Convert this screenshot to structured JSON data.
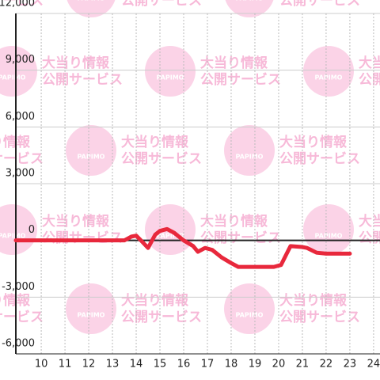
{
  "chart_data": {
    "type": "line",
    "x": [
      8.93,
      13.5,
      13.8,
      14.0,
      14.2,
      14.5,
      14.8,
      15.0,
      15.3,
      15.6,
      16.0,
      16.4,
      16.6,
      16.9,
      17.2,
      17.6,
      18.0,
      18.3,
      19.0,
      19.8,
      20.1,
      20.3,
      20.5,
      21.0,
      21.2,
      21.6,
      22.0,
      23.0
    ],
    "series": [
      {
        "color": "#e8283c",
        "values": [
          0,
          0,
          200,
          250,
          0,
          -400,
          300,
          500,
          600,
          400,
          0,
          -300,
          -600,
          -400,
          -500,
          -900,
          -1200,
          -1400,
          -1400,
          -1400,
          -1300,
          -800,
          -300,
          -350,
          -400,
          -650,
          -700,
          -700
        ]
      }
    ],
    "xlim": [
      8.93,
      24.27
    ],
    "ylim": [
      -6000,
      12000
    ],
    "xticks": [
      10,
      11,
      12,
      13,
      14,
      15,
      16,
      17,
      18,
      19,
      20,
      21,
      22,
      23,
      24
    ],
    "yticks": [
      {
        "value": -6000,
        "label": "-6,000"
      },
      {
        "value": -3000,
        "label": "-3,000"
      },
      0,
      {
        "value": 3000,
        "label": "3,000"
      },
      {
        "value": 6000,
        "label": "6,000"
      },
      {
        "value": 9000,
        "label": "9,000"
      },
      {
        "value": 12000,
        "label": "12,000"
      }
    ],
    "grid": true,
    "watermark": {
      "logo": "PAPIMO",
      "line1": "大当り情報",
      "line2": "公開サービス"
    }
  }
}
